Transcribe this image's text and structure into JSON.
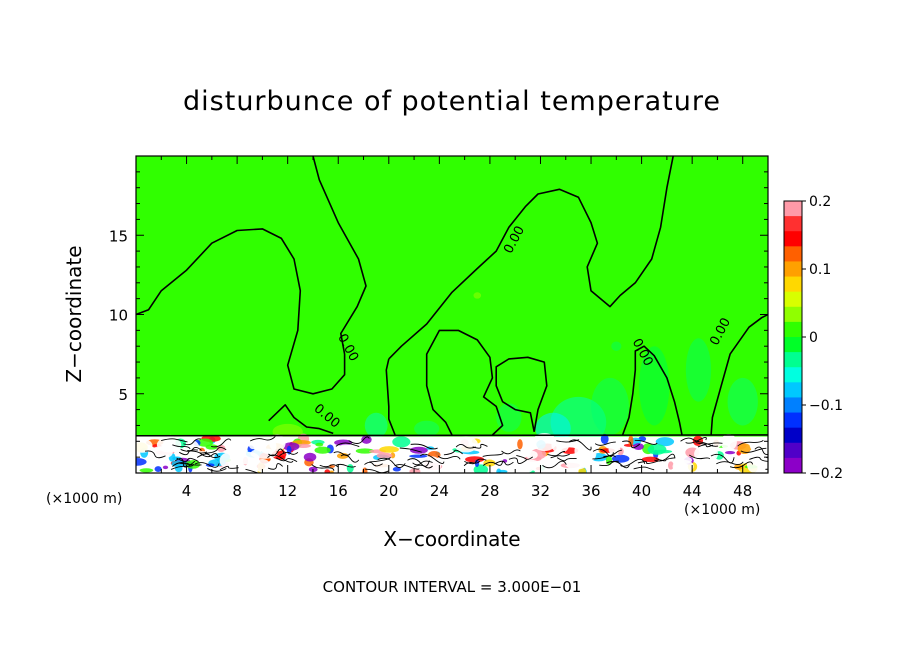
{
  "chart_data": {
    "type": "heatmap",
    "title": "disturbunce of potential temperature",
    "xlabel": "X−coordinate",
    "ylabel": "Z−coordinate",
    "x_unit_left": "(×1000 m)",
    "x_unit_right": "(×1000 m)",
    "xlim": [
      0,
      50
    ],
    "ylim": [
      0,
      20
    ],
    "xticks": [
      4,
      8,
      12,
      16,
      20,
      24,
      28,
      32,
      36,
      40,
      44,
      48
    ],
    "yticks": [
      5,
      10,
      15
    ],
    "contour_interval_text": "CONTOUR INTERVAL = 3.000E−01",
    "contour_labels": [
      {
        "text": "0.00",
        "x": 16.5,
        "y": 7.8
      },
      {
        "text": "0.00",
        "x": 14.9,
        "y": 3.4
      },
      {
        "text": "0.00",
        "x": 30.2,
        "y": 14.6
      },
      {
        "text": "0.00",
        "x": 39.8,
        "y": 7.5
      },
      {
        "text": "0.00",
        "x": 46.5,
        "y": 8.8
      }
    ],
    "colorbar": {
      "min": -0.2,
      "max": 0.2,
      "ticks": [
        "0.2",
        "0.1",
        "0",
        "−0.1",
        "−0.2"
      ],
      "colors": [
        "#ff9aa8",
        "#ff3030",
        "#ff0000",
        "#ff6000",
        "#ffa000",
        "#ffd800",
        "#d8ff00",
        "#90ff00",
        "#30ff00",
        "#00ff28",
        "#00ff90",
        "#00ffe0",
        "#00c8ff",
        "#0080ff",
        "#0030ff",
        "#0000c8",
        "#5000c8",
        "#8c00c8"
      ]
    },
    "background_color": "#30ff00"
  }
}
